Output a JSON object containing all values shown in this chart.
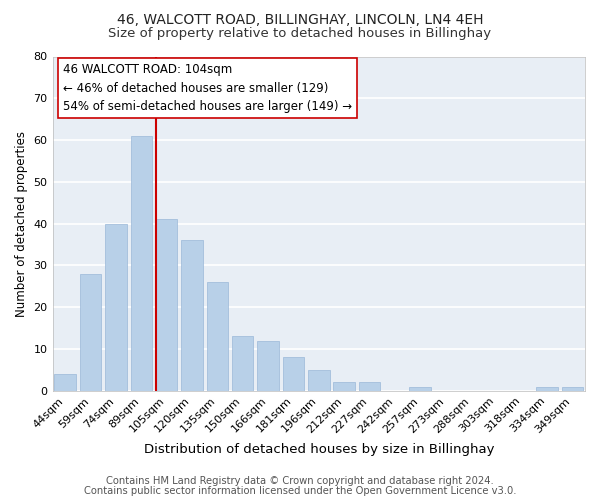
{
  "title": "46, WALCOTT ROAD, BILLINGHAY, LINCOLN, LN4 4EH",
  "subtitle": "Size of property relative to detached houses in Billinghay",
  "xlabel": "Distribution of detached houses by size in Billinghay",
  "ylabel": "Number of detached properties",
  "bar_labels": [
    "44sqm",
    "59sqm",
    "74sqm",
    "89sqm",
    "105sqm",
    "120sqm",
    "135sqm",
    "150sqm",
    "166sqm",
    "181sqm",
    "196sqm",
    "212sqm",
    "227sqm",
    "242sqm",
    "257sqm",
    "273sqm",
    "288sqm",
    "303sqm",
    "318sqm",
    "334sqm",
    "349sqm"
  ],
  "bar_values": [
    4,
    28,
    40,
    61,
    41,
    36,
    26,
    13,
    12,
    8,
    5,
    2,
    2,
    0,
    1,
    0,
    0,
    0,
    0,
    1,
    1
  ],
  "bar_color": "#b8d0e8",
  "bar_edge_color": "#9ab8d8",
  "vline_color": "#cc0000",
  "vline_x_index": 4,
  "ylim": [
    0,
    80
  ],
  "yticks": [
    0,
    10,
    20,
    30,
    40,
    50,
    60,
    70,
    80
  ],
  "annotation_title": "46 WALCOTT ROAD: 104sqm",
  "annotation_line1": "← 46% of detached houses are smaller (129)",
  "annotation_line2": "54% of semi-detached houses are larger (149) →",
  "annotation_box_facecolor": "#ffffff",
  "annotation_box_edgecolor": "#cc0000",
  "footer1": "Contains HM Land Registry data © Crown copyright and database right 2024.",
  "footer2": "Contains public sector information licensed under the Open Government Licence v3.0.",
  "bg_color": "#ffffff",
  "plot_bg_color": "#e8eef5",
  "grid_color": "#ffffff",
  "title_fontsize": 10,
  "subtitle_fontsize": 9.5,
  "xlabel_fontsize": 9.5,
  "ylabel_fontsize": 8.5,
  "tick_fontsize": 8,
  "annotation_fontsize": 8.5,
  "footer_fontsize": 7.2
}
